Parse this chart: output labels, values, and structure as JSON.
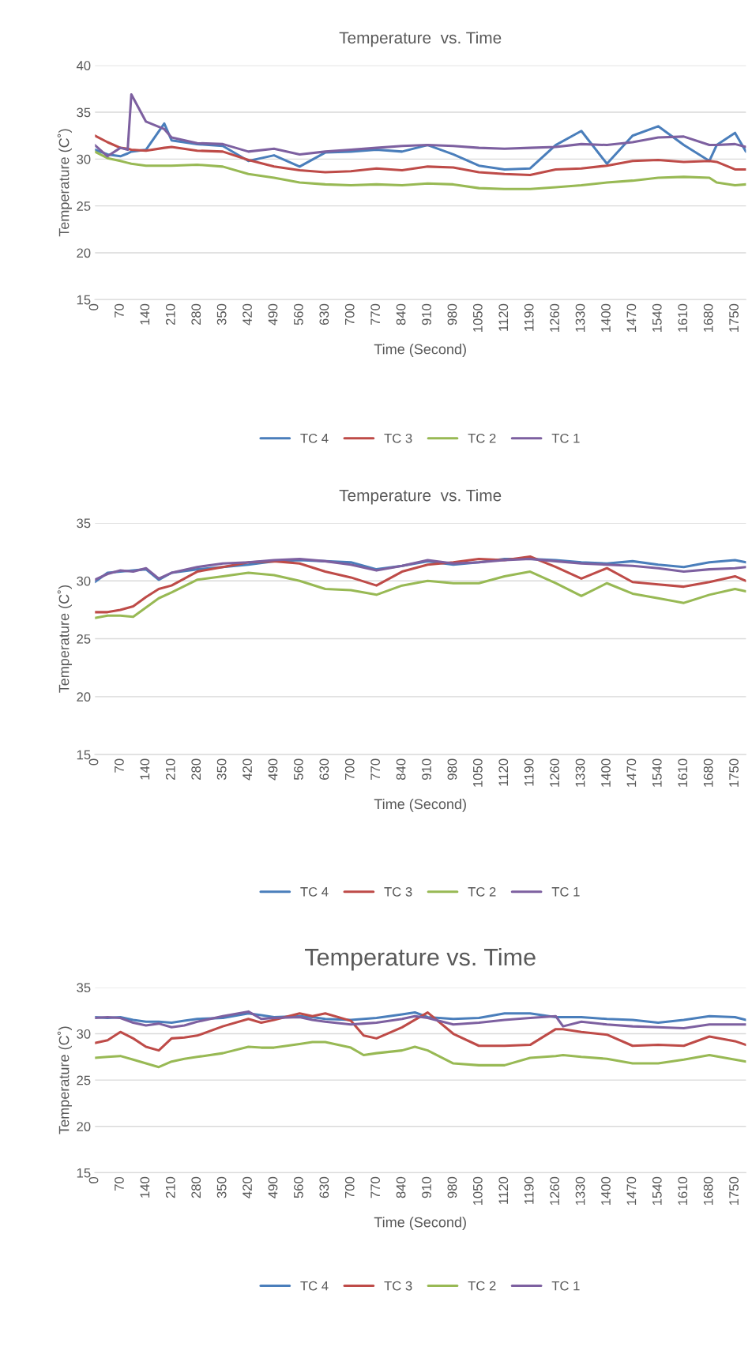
{
  "chart_data": [
    {
      "type": "line",
      "title": "Temperature  vs. Time",
      "xlabel": "Time (Second)",
      "ylabel": "Temperature (C˚)",
      "xlim": [
        0,
        1780
      ],
      "xticks": [
        0,
        70,
        140,
        210,
        280,
        350,
        420,
        490,
        560,
        630,
        700,
        770,
        840,
        910,
        980,
        1050,
        1120,
        1190,
        1260,
        1330,
        1400,
        1470,
        1540,
        1610,
        1680,
        1750
      ],
      "ylim": [
        15,
        40
      ],
      "yticks": [
        15,
        20,
        25,
        30,
        35,
        40
      ],
      "grid": "y",
      "legend": "bottom",
      "marker": "none",
      "line_style": "solid",
      "x": [
        0,
        35,
        70,
        90,
        100,
        140,
        190,
        210,
        280,
        350,
        420,
        490,
        560,
        630,
        700,
        770,
        840,
        910,
        980,
        1050,
        1120,
        1190,
        1260,
        1330,
        1400,
        1470,
        1540,
        1610,
        1680,
        1700,
        1750,
        1780
      ],
      "series": [
        {
          "name": "TC 4",
          "color": "#4a7ebb",
          "values": [
            31,
            30.5,
            30.3,
            30.6,
            30.8,
            31,
            33.8,
            32,
            31.6,
            31.4,
            29.8,
            30.4,
            29.2,
            30.7,
            30.8,
            31,
            30.8,
            31.5,
            30.5,
            29.3,
            28.9,
            29,
            31.5,
            33,
            29.5,
            32.5,
            33.5,
            31.5,
            29.8,
            31.5,
            32.8,
            30.8
          ]
        },
        {
          "name": "TC 3",
          "color": "#be4b48",
          "values": [
            32.5,
            31.8,
            31.2,
            31.1,
            31,
            30.9,
            31.2,
            31.3,
            30.9,
            30.8,
            29.9,
            29.2,
            28.8,
            28.6,
            28.7,
            29,
            28.8,
            29.2,
            29.1,
            28.6,
            28.4,
            28.3,
            28.9,
            29,
            29.3,
            29.8,
            29.9,
            29.7,
            29.8,
            29.7,
            28.9,
            28.9
          ]
        },
        {
          "name": "TC 2",
          "color": "#98b954",
          "values": [
            30.8,
            30.1,
            29.8,
            29.6,
            29.5,
            29.3,
            29.3,
            29.3,
            29.4,
            29.2,
            28.4,
            28,
            27.5,
            27.3,
            27.2,
            27.3,
            27.2,
            27.4,
            27.3,
            26.9,
            26.8,
            26.8,
            27,
            27.2,
            27.5,
            27.7,
            28,
            28.1,
            28,
            27.5,
            27.2,
            27.3
          ]
        },
        {
          "name": "TC 1",
          "color": "#7d60a0",
          "values": [
            31.5,
            30.3,
            31.2,
            31,
            36.9,
            34,
            33.2,
            32.3,
            31.7,
            31.6,
            30.8,
            31.1,
            30.5,
            30.8,
            31,
            31.2,
            31.4,
            31.5,
            31.4,
            31.2,
            31.1,
            31.2,
            31.3,
            31.6,
            31.5,
            31.8,
            32.3,
            32.4,
            31.5,
            31.5,
            31.6,
            31.3
          ]
        }
      ]
    },
    {
      "type": "line",
      "title": "Temperature  vs. Time",
      "xlabel": "Time (Second)",
      "ylabel": "Temperature (C˚)",
      "xlim": [
        0,
        1780
      ],
      "xticks": [
        0,
        70,
        140,
        210,
        280,
        350,
        420,
        490,
        560,
        630,
        700,
        770,
        840,
        910,
        980,
        1050,
        1120,
        1190,
        1260,
        1330,
        1400,
        1470,
        1540,
        1610,
        1680,
        1750
      ],
      "ylim": [
        15,
        35
      ],
      "yticks": [
        15,
        20,
        25,
        30,
        35
      ],
      "grid": "y",
      "legend": "bottom",
      "marker": "none",
      "line_style": "solid",
      "x": [
        0,
        35,
        70,
        105,
        140,
        175,
        210,
        280,
        350,
        420,
        490,
        560,
        630,
        700,
        770,
        840,
        910,
        980,
        1050,
        1120,
        1190,
        1260,
        1330,
        1400,
        1470,
        1540,
        1610,
        1680,
        1750,
        1780
      ],
      "series": [
        {
          "name": "TC 4",
          "color": "#4a7ebb",
          "values": [
            29.9,
            30.7,
            30.8,
            30.9,
            31,
            30.1,
            30.7,
            31,
            31.2,
            31.4,
            31.7,
            31.8,
            31.7,
            31.6,
            31,
            31.3,
            31.7,
            31.4,
            31.6,
            31.9,
            31.9,
            31.8,
            31.6,
            31.5,
            31.7,
            31.4,
            31.2,
            31.6,
            31.8,
            31.6
          ]
        },
        {
          "name": "TC 3",
          "color": "#be4b48",
          "values": [
            27.3,
            27.3,
            27.5,
            27.8,
            28.6,
            29.3,
            29.6,
            30.8,
            31.2,
            31.6,
            31.7,
            31.5,
            30.8,
            30.3,
            29.6,
            30.8,
            31.4,
            31.6,
            31.9,
            31.8,
            32.1,
            31.2,
            30.2,
            31.1,
            29.9,
            29.7,
            29.5,
            29.9,
            30.4,
            30
          ]
        },
        {
          "name": "TC 2",
          "color": "#98b954",
          "values": [
            26.8,
            27,
            27,
            26.9,
            27.7,
            28.5,
            29,
            30.1,
            30.4,
            30.7,
            30.5,
            30,
            29.3,
            29.2,
            28.8,
            29.6,
            30,
            29.8,
            29.8,
            30.4,
            30.8,
            29.8,
            28.7,
            29.8,
            28.9,
            28.5,
            28.1,
            28.8,
            29.3,
            29.1
          ]
        },
        {
          "name": "TC 1",
          "color": "#7d60a0",
          "values": [
            30.1,
            30.6,
            30.9,
            30.8,
            31.1,
            30.2,
            30.7,
            31.2,
            31.5,
            31.6,
            31.8,
            31.9,
            31.7,
            31.4,
            30.9,
            31.3,
            31.8,
            31.5,
            31.6,
            31.8,
            31.9,
            31.7,
            31.5,
            31.4,
            31.3,
            31.1,
            30.8,
            31,
            31.1,
            31.2
          ]
        }
      ]
    },
    {
      "type": "line",
      "title": "Temperature vs. Time",
      "xlabel": "Time (Second)",
      "ylabel": "Temperature (C˚)",
      "xlim": [
        0,
        1780
      ],
      "xticks": [
        0,
        70,
        140,
        210,
        280,
        350,
        420,
        490,
        560,
        630,
        700,
        770,
        840,
        910,
        980,
        1050,
        1120,
        1190,
        1260,
        1330,
        1400,
        1470,
        1540,
        1610,
        1680,
        1750
      ],
      "ylim": [
        15,
        35
      ],
      "yticks": [
        15,
        20,
        25,
        30,
        35
      ],
      "grid": "y",
      "legend": "bottom",
      "marker": "none",
      "line_style": "solid",
      "x": [
        0,
        35,
        70,
        105,
        140,
        175,
        210,
        245,
        280,
        350,
        420,
        455,
        490,
        560,
        595,
        630,
        700,
        735,
        770,
        840,
        875,
        910,
        980,
        1050,
        1120,
        1190,
        1260,
        1280,
        1330,
        1400,
        1470,
        1540,
        1610,
        1680,
        1750,
        1780
      ],
      "series": [
        {
          "name": "TC 4",
          "color": "#4a7ebb",
          "values": [
            31.8,
            31.7,
            31.8,
            31.5,
            31.3,
            31.3,
            31.2,
            31.4,
            31.6,
            31.7,
            32.2,
            32,
            31.8,
            31.9,
            31.8,
            31.6,
            31.5,
            31.6,
            31.7,
            32.1,
            32.3,
            31.8,
            31.6,
            31.7,
            32.2,
            32.2,
            31.8,
            31.8,
            31.8,
            31.6,
            31.5,
            31.2,
            31.5,
            31.9,
            31.8,
            31.5
          ]
        },
        {
          "name": "TC 3",
          "color": "#be4b48",
          "values": [
            29,
            29.3,
            30.2,
            29.5,
            28.6,
            28.2,
            29.5,
            29.6,
            29.8,
            30.8,
            31.6,
            31.2,
            31.5,
            32.2,
            31.9,
            32.2,
            31.4,
            29.8,
            29.5,
            30.7,
            31.5,
            32.3,
            30,
            28.7,
            28.7,
            28.8,
            30.5,
            30.5,
            30.2,
            29.9,
            28.7,
            28.8,
            28.7,
            29.7,
            29.2,
            28.8
          ]
        },
        {
          "name": "TC 2",
          "color": "#98b954",
          "values": [
            27.4,
            27.5,
            27.6,
            27.2,
            26.8,
            26.4,
            27,
            27.3,
            27.5,
            27.9,
            28.6,
            28.5,
            28.5,
            28.9,
            29.1,
            29.1,
            28.5,
            27.7,
            27.9,
            28.2,
            28.6,
            28.2,
            26.8,
            26.6,
            26.6,
            27.4,
            27.6,
            27.7,
            27.5,
            27.3,
            26.8,
            26.8,
            27.2,
            27.7,
            27.2,
            27
          ]
        },
        {
          "name": "TC 1",
          "color": "#7d60a0",
          "values": [
            31.7,
            31.8,
            31.7,
            31.2,
            30.9,
            31.1,
            30.7,
            30.9,
            31.3,
            31.9,
            32.4,
            31.6,
            31.7,
            31.8,
            31.5,
            31.3,
            31,
            31.1,
            31.2,
            31.6,
            31.9,
            31.7,
            31,
            31.2,
            31.5,
            31.7,
            31.9,
            30.8,
            31.3,
            31,
            30.8,
            30.7,
            30.6,
            31,
            31,
            31
          ]
        }
      ]
    }
  ]
}
